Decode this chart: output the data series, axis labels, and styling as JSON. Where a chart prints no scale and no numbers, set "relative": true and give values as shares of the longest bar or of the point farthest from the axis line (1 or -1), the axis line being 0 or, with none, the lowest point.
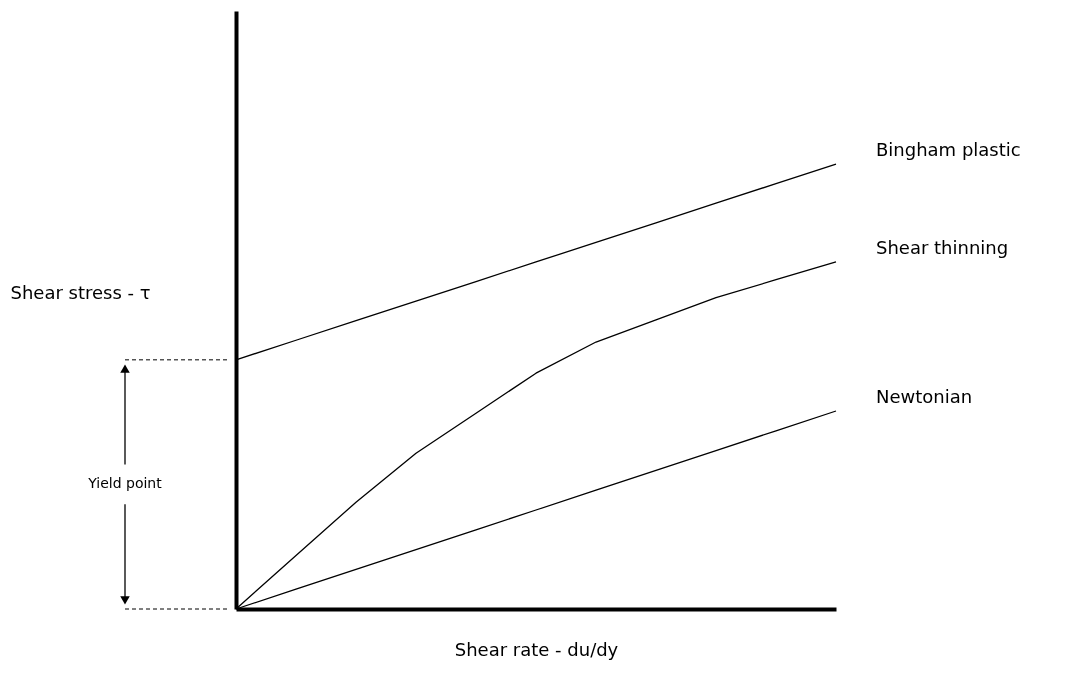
{
  "chart_data": {
    "type": "line",
    "relative": true,
    "xlabel": "Shear rate - du/dy",
    "ylabel": "Shear stress - τ",
    "legend": false,
    "grid": false,
    "marker": "none",
    "line_style": "solid",
    "annotations": [
      "Yield point"
    ],
    "categories": [
      null,
      null,
      null,
      null,
      null,
      null,
      null,
      null,
      null,
      null,
      null
    ],
    "series": [
      {
        "name": "Bingham plastic",
        "color": "#000000",
        "values": [
          0.56,
          0.604,
          0.648,
          0.692,
          0.736,
          0.78,
          0.824,
          0.868,
          0.912,
          0.956,
          1
        ]
      },
      {
        "name": "Shear thinning",
        "color": "#000000",
        "values": [
          0,
          0.12,
          0.24,
          0.35,
          0.44,
          0.53,
          0.6,
          0.65,
          0.7,
          0.74,
          0.78
        ]
      },
      {
        "name": "Newtonian",
        "color": "#000000",
        "values": [
          0,
          0.0445,
          0.089,
          0.1335,
          0.178,
          0.2225,
          0.267,
          0.3115,
          0.356,
          0.4005,
          0.445
        ]
      }
    ]
  }
}
